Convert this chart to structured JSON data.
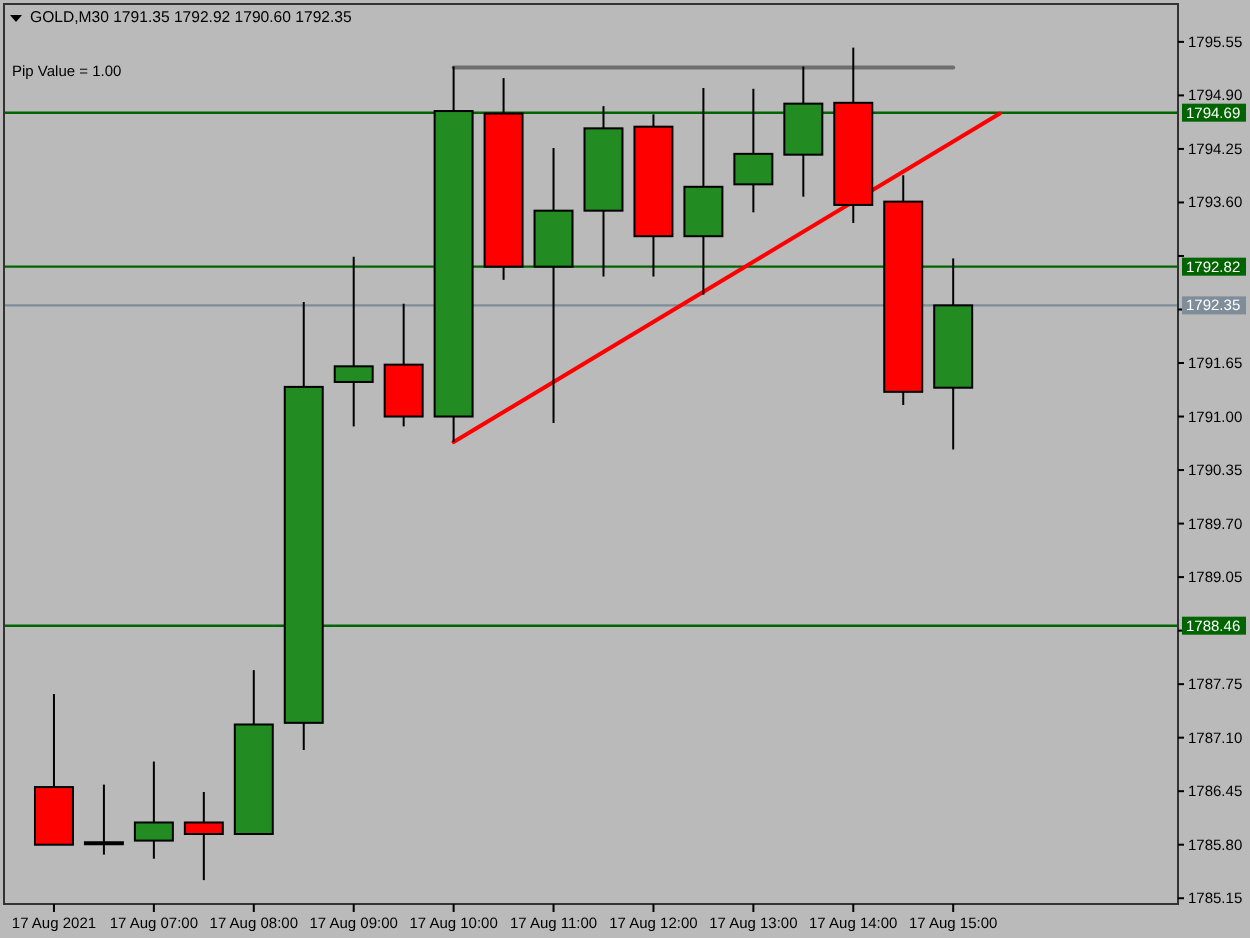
{
  "chart_data": {
    "type": "candlestick",
    "title": "GOLD,M30 1791.35 1792.92 1790.60 1792.35",
    "annotations": [
      "Pip Value = 1.00"
    ],
    "series": [
      {
        "x": [
          "2021-08-17T06:00",
          "2021-08-17T06:30",
          "2021-08-17T07:00",
          "2021-08-17T07:30",
          "2021-08-17T08:00",
          "2021-08-17T08:30",
          "2021-08-17T09:00",
          "2021-08-17T09:30",
          "2021-08-17T10:00",
          "2021-08-17T10:30",
          "2021-08-17T11:00",
          "2021-08-17T11:30",
          "2021-08-17T12:00",
          "2021-08-17T12:30",
          "2021-08-17T13:00",
          "2021-08-17T13:30",
          "2021-08-17T14:00",
          "2021-08-17T14:30",
          "2021-08-17T15:00"
        ],
        "ohlc": [
          [
            1786.5,
            1787.63,
            1785.8,
            1785.8
          ],
          [
            1785.83,
            1786.53,
            1785.68,
            1785.83
          ],
          [
            1785.85,
            1786.81,
            1785.63,
            1786.07
          ],
          [
            1786.07,
            1786.44,
            1785.37,
            1785.93
          ],
          [
            1785.93,
            1787.92,
            1785.93,
            1787.26
          ],
          [
            1787.28,
            1792.39,
            1786.95,
            1791.36
          ],
          [
            1791.42,
            1792.94,
            1790.88,
            1791.61
          ],
          [
            1791.63,
            1792.37,
            1790.88,
            1791.0
          ],
          [
            1791.0,
            1795.25,
            1790.69,
            1794.71
          ],
          [
            1794.68,
            1795.11,
            1792.66,
            1792.82
          ],
          [
            1792.82,
            1794.26,
            1790.92,
            1793.5
          ],
          [
            1793.5,
            1794.77,
            1792.7,
            1794.5
          ],
          [
            1794.52,
            1794.67,
            1792.7,
            1793.19
          ],
          [
            1793.19,
            1794.99,
            1792.48,
            1793.79
          ],
          [
            1793.82,
            1794.98,
            1793.48,
            1794.19
          ],
          [
            1794.18,
            1795.25,
            1793.67,
            1794.8
          ],
          [
            1794.81,
            1795.48,
            1793.35,
            1793.57
          ],
          [
            1793.61,
            1793.93,
            1791.14,
            1791.3
          ],
          [
            1791.35,
            1792.92,
            1790.6,
            1792.35
          ]
        ],
        "colors": [
          "#ff0000",
          "#228b22",
          "#228b22",
          "#ff0000",
          "#228b22",
          "#228b22",
          "#228b22",
          "#ff0000",
          "#228b22",
          "#ff0000",
          "#228b22",
          "#228b22",
          "#ff0000",
          "#228b22",
          "#228b22",
          "#228b22",
          "#ff0000",
          "#ff0000",
          "#228b22"
        ]
      },
      {
        "type": "line",
        "color": "#ff0000",
        "x": [
          "2021-08-17T10:00",
          "2021-08-17T15:28"
        ],
        "values": [
          1790.69,
          1794.68
        ]
      },
      {
        "type": "line",
        "color": "#6e6e6e",
        "x": [
          "2021-08-17T10:00",
          "2021-08-17T15:00"
        ],
        "values": [
          1795.24,
          1795.24
        ]
      }
    ],
    "xlim": [
      "2021-08-17T05:30",
      "2021-08-17T17:15"
    ],
    "xticks": [
      {
        "value": "2021-08-17T06:00",
        "label": "17 Aug 2021"
      },
      {
        "value": "2021-08-17T07:00",
        "label": "17 Aug 07:00"
      },
      {
        "value": "2021-08-17T08:00",
        "label": "17 Aug 08:00"
      },
      {
        "value": "2021-08-17T09:00",
        "label": "17 Aug 09:00"
      },
      {
        "value": "2021-08-17T10:00",
        "label": "17 Aug 10:00"
      },
      {
        "value": "2021-08-17T11:00",
        "label": "17 Aug 11:00"
      },
      {
        "value": "2021-08-17T12:00",
        "label": "17 Aug 12:00"
      },
      {
        "value": "2021-08-17T13:00",
        "label": "17 Aug 13:00"
      },
      {
        "value": "2021-08-17T14:00",
        "label": "17 Aug 14:00"
      },
      {
        "value": "2021-08-17T15:00",
        "label": "17 Aug 15:00"
      }
    ],
    "ylim": [
      1785.08,
      1796.01
    ],
    "yticks": [
      1795.55,
      {
        "value": 1794.9,
        "label": "1794.90"
      },
      1794.25,
      {
        "value": 1793.6,
        "label": "1793.60"
      },
      {
        "value": 1792.95,
        "label": null
      },
      {
        "value": 1792.3,
        "label": null
      },
      1791.65,
      {
        "value": 1791.0,
        "label": "1791.00"
      },
      1790.35,
      {
        "value": 1789.7,
        "label": "1789.70"
      },
      1789.05,
      {
        "value": 1788.4,
        "label": null
      },
      1787.75,
      {
        "value": 1787.1,
        "label": "1787.10"
      },
      1786.45,
      {
        "value": 1785.8,
        "label": "1785.80"
      },
      1785.15
    ],
    "ref_lines": [
      {
        "axis": "y",
        "value": 1794.69,
        "label": "1794.69",
        "color": "#006400"
      },
      {
        "axis": "y",
        "value": 1792.82,
        "label": "1792.82",
        "color": "#006400"
      },
      {
        "axis": "y",
        "value": 1788.46,
        "label": "1788.46",
        "color": "#006400"
      },
      {
        "axis": "y",
        "value": 1792.35,
        "label": "1792.35",
        "color": "#7f8c99"
      }
    ]
  }
}
